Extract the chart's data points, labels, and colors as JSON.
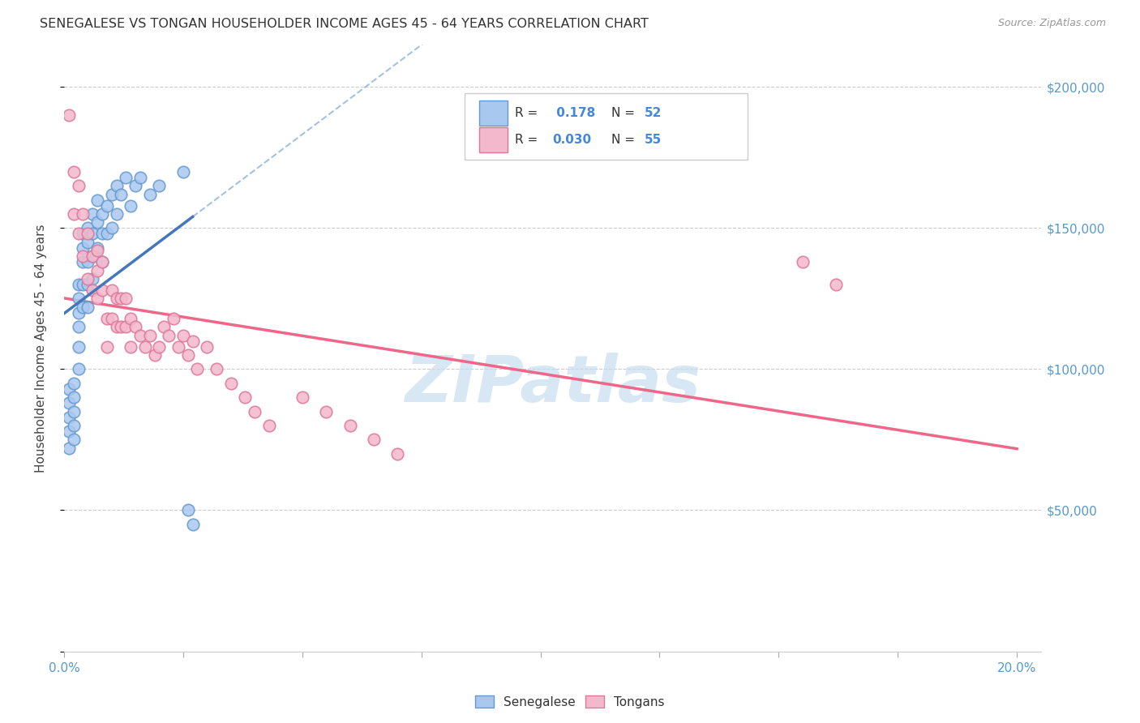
{
  "title": "SENEGALESE VS TONGAN HOUSEHOLDER INCOME AGES 45 - 64 YEARS CORRELATION CHART",
  "source": "Source: ZipAtlas.com",
  "ylabel": "Householder Income Ages 45 - 64 years",
  "color_senegalese": "#a8c8f0",
  "color_tongans": "#f4b8cc",
  "color_senegalese_edge": "#6699cc",
  "color_tongans_edge": "#dd7799",
  "color_senegalese_line": "#4477bb",
  "color_tongans_line": "#ee6688",
  "color_dashed": "#99bbdd",
  "watermark_color": "#c8ddf0",
  "senegalese_x": [
    0.001,
    0.001,
    0.001,
    0.001,
    0.001,
    0.002,
    0.002,
    0.002,
    0.002,
    0.002,
    0.003,
    0.003,
    0.003,
    0.003,
    0.003,
    0.003,
    0.004,
    0.004,
    0.004,
    0.004,
    0.004,
    0.005,
    0.005,
    0.005,
    0.005,
    0.005,
    0.006,
    0.006,
    0.006,
    0.006,
    0.007,
    0.007,
    0.007,
    0.008,
    0.008,
    0.008,
    0.009,
    0.009,
    0.01,
    0.01,
    0.011,
    0.011,
    0.012,
    0.013,
    0.014,
    0.015,
    0.016,
    0.018,
    0.02,
    0.025,
    0.026,
    0.027
  ],
  "senegalese_y": [
    93000,
    88000,
    83000,
    78000,
    72000,
    95000,
    90000,
    85000,
    80000,
    75000,
    130000,
    125000,
    120000,
    115000,
    108000,
    100000,
    148000,
    143000,
    138000,
    130000,
    122000,
    150000,
    145000,
    138000,
    130000,
    122000,
    155000,
    148000,
    140000,
    132000,
    160000,
    152000,
    143000,
    155000,
    148000,
    138000,
    158000,
    148000,
    162000,
    150000,
    165000,
    155000,
    162000,
    168000,
    158000,
    165000,
    168000,
    162000,
    165000,
    170000,
    50000,
    45000
  ],
  "tongans_x": [
    0.001,
    0.002,
    0.002,
    0.003,
    0.003,
    0.004,
    0.004,
    0.005,
    0.005,
    0.006,
    0.006,
    0.007,
    0.007,
    0.007,
    0.008,
    0.008,
    0.009,
    0.009,
    0.01,
    0.01,
    0.011,
    0.011,
    0.012,
    0.012,
    0.013,
    0.013,
    0.014,
    0.014,
    0.015,
    0.016,
    0.017,
    0.018,
    0.019,
    0.02,
    0.021,
    0.022,
    0.023,
    0.024,
    0.025,
    0.026,
    0.027,
    0.028,
    0.03,
    0.032,
    0.035,
    0.038,
    0.04,
    0.043,
    0.05,
    0.055,
    0.06,
    0.065,
    0.07,
    0.155,
    0.162
  ],
  "tongans_y": [
    190000,
    170000,
    155000,
    165000,
    148000,
    155000,
    140000,
    148000,
    132000,
    140000,
    128000,
    142000,
    135000,
    125000,
    138000,
    128000,
    118000,
    108000,
    128000,
    118000,
    125000,
    115000,
    125000,
    115000,
    125000,
    115000,
    118000,
    108000,
    115000,
    112000,
    108000,
    112000,
    105000,
    108000,
    115000,
    112000,
    118000,
    108000,
    112000,
    105000,
    110000,
    100000,
    108000,
    100000,
    95000,
    90000,
    85000,
    80000,
    90000,
    85000,
    80000,
    75000,
    70000,
    138000,
    130000
  ],
  "x_min": 0.0,
  "x_max": 0.205,
  "y_min": 0,
  "y_max": 215000,
  "x_ticks": [
    0.0,
    0.025,
    0.05,
    0.075,
    0.1,
    0.125,
    0.15,
    0.175,
    0.2
  ],
  "y_ticks": [
    0,
    50000,
    100000,
    150000,
    200000
  ],
  "y_tick_labels": [
    "",
    "$50,000",
    "$100,000",
    "$150,000",
    "$200,000"
  ]
}
